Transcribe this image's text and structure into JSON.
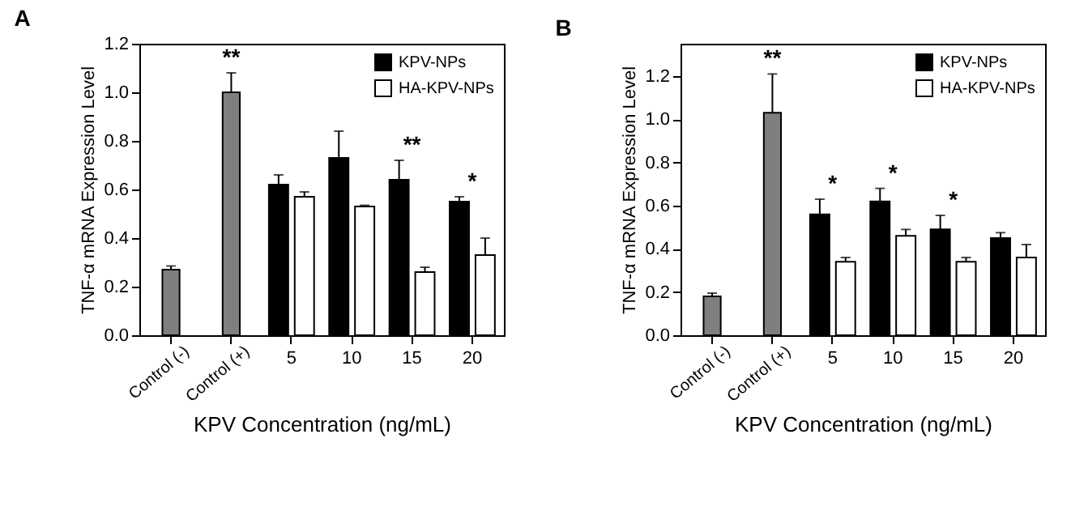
{
  "chart_data": [
    {
      "type": "bar",
      "title": "A",
      "xlabel": "KPV Concentration (ng/mL)",
      "ylabel": "TNF-α mRNA Expression Level",
      "categories": [
        "Control (-)",
        "Control (+)",
        "5",
        "10",
        "15",
        "20"
      ],
      "ylim": [
        0,
        1.2
      ],
      "yticks": [
        {
          "value": 0,
          "label": "0.0"
        },
        {
          "value": 0.2,
          "label": "0.2"
        },
        {
          "value": 0.4,
          "label": "0.4"
        },
        {
          "value": 0.6,
          "label": "0.6"
        },
        {
          "value": 0.8,
          "label": "0.8"
        },
        {
          "value": 1.0,
          "label": "1.0"
        },
        {
          "value": 1.2,
          "label": "1.2"
        }
      ],
      "legend": "top right",
      "series": [
        {
          "color": "#7f7f7f",
          "values": [
            0.27,
            1.0,
            null,
            null,
            null,
            null
          ],
          "errors": [
            [
              0.27,
              0.285
            ],
            [
              1.0,
              1.08
            ],
            null,
            null,
            null,
            null
          ]
        },
        {
          "name": "KPV-NPs",
          "color": "#000000",
          "values": [
            null,
            null,
            0.62,
            0.73,
            0.64,
            0.55
          ],
          "errors": [
            null,
            null,
            [
              0.62,
              0.66
            ],
            [
              0.73,
              0.84
            ],
            [
              0.64,
              0.72
            ],
            [
              0.55,
              0.57
            ]
          ]
        },
        {
          "name": "HA-KPV-NPs",
          "color": "#ffffff",
          "values": [
            null,
            null,
            0.57,
            0.53,
            0.26,
            0.33
          ],
          "errors": [
            null,
            null,
            [
              0.57,
              0.59
            ],
            [
              0.53,
              0.535
            ],
            [
              0.26,
              0.28
            ],
            [
              0.33,
              0.4
            ]
          ]
        }
      ],
      "annotations": [
        {
          "text": "**",
          "x": "Control (+)",
          "y": 1.08
        },
        {
          "text": "**",
          "x": "15",
          "y": 0.72
        },
        {
          "text": "*",
          "x": "20",
          "y": 0.57
        }
      ]
    },
    {
      "type": "bar",
      "title": "B",
      "xlabel": "KPV Concentration (ng/mL)",
      "ylabel": "TNF-α mRNA Expression Level",
      "categories": [
        "Control (-)",
        "Control (+)",
        "5",
        "10",
        "15",
        "20"
      ],
      "ylim": [
        0,
        1.35
      ],
      "yticks": [
        {
          "value": 0,
          "label": "0.0"
        },
        {
          "value": 0.2,
          "label": "0.2"
        },
        {
          "value": 0.4,
          "label": "0.4"
        },
        {
          "value": 0.6,
          "label": "0.6"
        },
        {
          "value": 0.8,
          "label": "0.8"
        },
        {
          "value": 1.0,
          "label": "1.0"
        },
        {
          "value": 1.2,
          "label": "1.2"
        }
      ],
      "legend": "top right",
      "series": [
        {
          "color": "#7f7f7f",
          "values": [
            0.18,
            1.03,
            null,
            null,
            null,
            null
          ],
          "errors": [
            [
              0.18,
              0.195
            ],
            [
              1.03,
              1.21
            ],
            null,
            null,
            null,
            null
          ]
        },
        {
          "name": "KPV-NPs",
          "color": "#000000",
          "values": [
            null,
            null,
            0.56,
            0.62,
            0.49,
            0.45
          ],
          "errors": [
            null,
            null,
            [
              0.56,
              0.63
            ],
            [
              0.62,
              0.68
            ],
            [
              0.49,
              0.555
            ],
            [
              0.45,
              0.475
            ]
          ]
        },
        {
          "name": "HA-KPV-NPs",
          "color": "#ffffff",
          "values": [
            null,
            null,
            0.34,
            0.46,
            0.34,
            0.36
          ],
          "errors": [
            null,
            null,
            [
              0.34,
              0.36
            ],
            [
              0.46,
              0.49
            ],
            [
              0.34,
              0.36
            ],
            [
              0.36,
              0.42
            ]
          ]
        }
      ],
      "annotations": [
        {
          "text": "**",
          "x": "Control (+)",
          "y": 1.21
        },
        {
          "text": "*",
          "x": "5",
          "y": 0.63
        },
        {
          "text": "*",
          "x": "10",
          "y": 0.68
        },
        {
          "text": "*",
          "x": "15",
          "y": 0.555
        }
      ]
    }
  ]
}
